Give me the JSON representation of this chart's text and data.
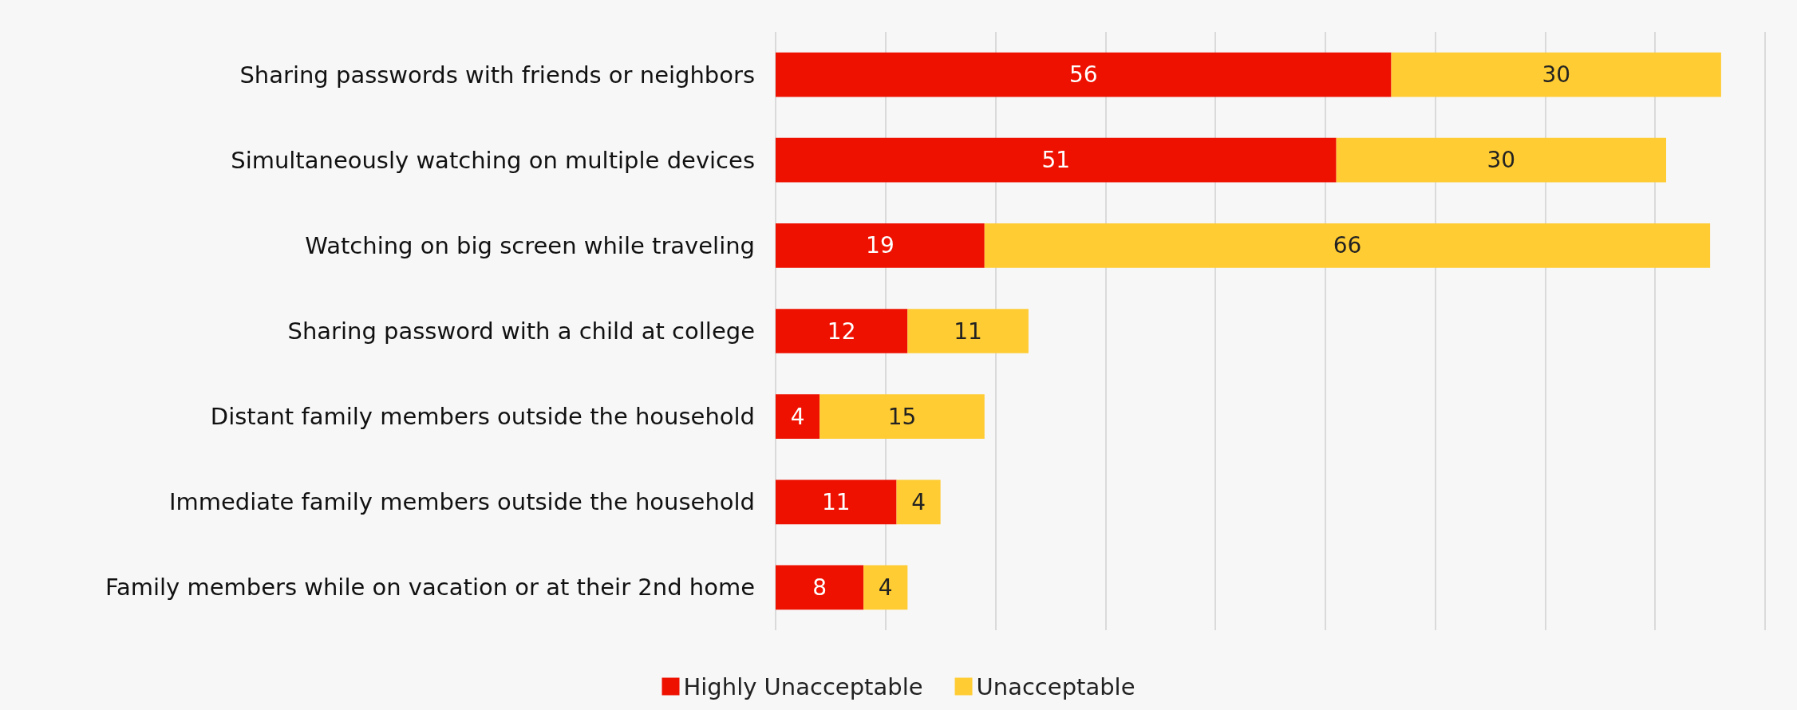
{
  "chart_data": {
    "type": "bar",
    "orientation": "horizontal",
    "stacked": true,
    "categories": [
      "Sharing passwords with friends or neighbors",
      "Simultaneously watching on multiple devices",
      "Watching on big screen while traveling",
      "Sharing password with a child at college",
      "Distant family members outside the household",
      "Immediate family members outside the household",
      "Family members while on vacation or at their 2nd home"
    ],
    "series": [
      {
        "name": "Highly Unacceptable",
        "color": "#ee1100",
        "values": [
          56,
          51,
          19,
          12,
          4,
          11,
          8
        ]
      },
      {
        "name": "Unacceptable",
        "color": "#ffcc33",
        "values": [
          30,
          30,
          66,
          11,
          15,
          4,
          4
        ]
      }
    ],
    "xlim": [
      0,
      90
    ],
    "xticks": [
      {
        "value": 0,
        "label": null
      },
      {
        "value": 10,
        "label": null
      },
      {
        "value": 20,
        "label": null
      },
      {
        "value": 30,
        "label": null
      },
      {
        "value": 40,
        "label": null
      },
      {
        "value": 50,
        "label": null
      },
      {
        "value": 60,
        "label": null
      },
      {
        "value": 70,
        "label": null
      },
      {
        "value": 80,
        "label": null
      },
      {
        "value": 90,
        "label": null
      }
    ],
    "data_labels": true,
    "tick_labels": "y",
    "grid": "x",
    "legend": "bottom"
  }
}
